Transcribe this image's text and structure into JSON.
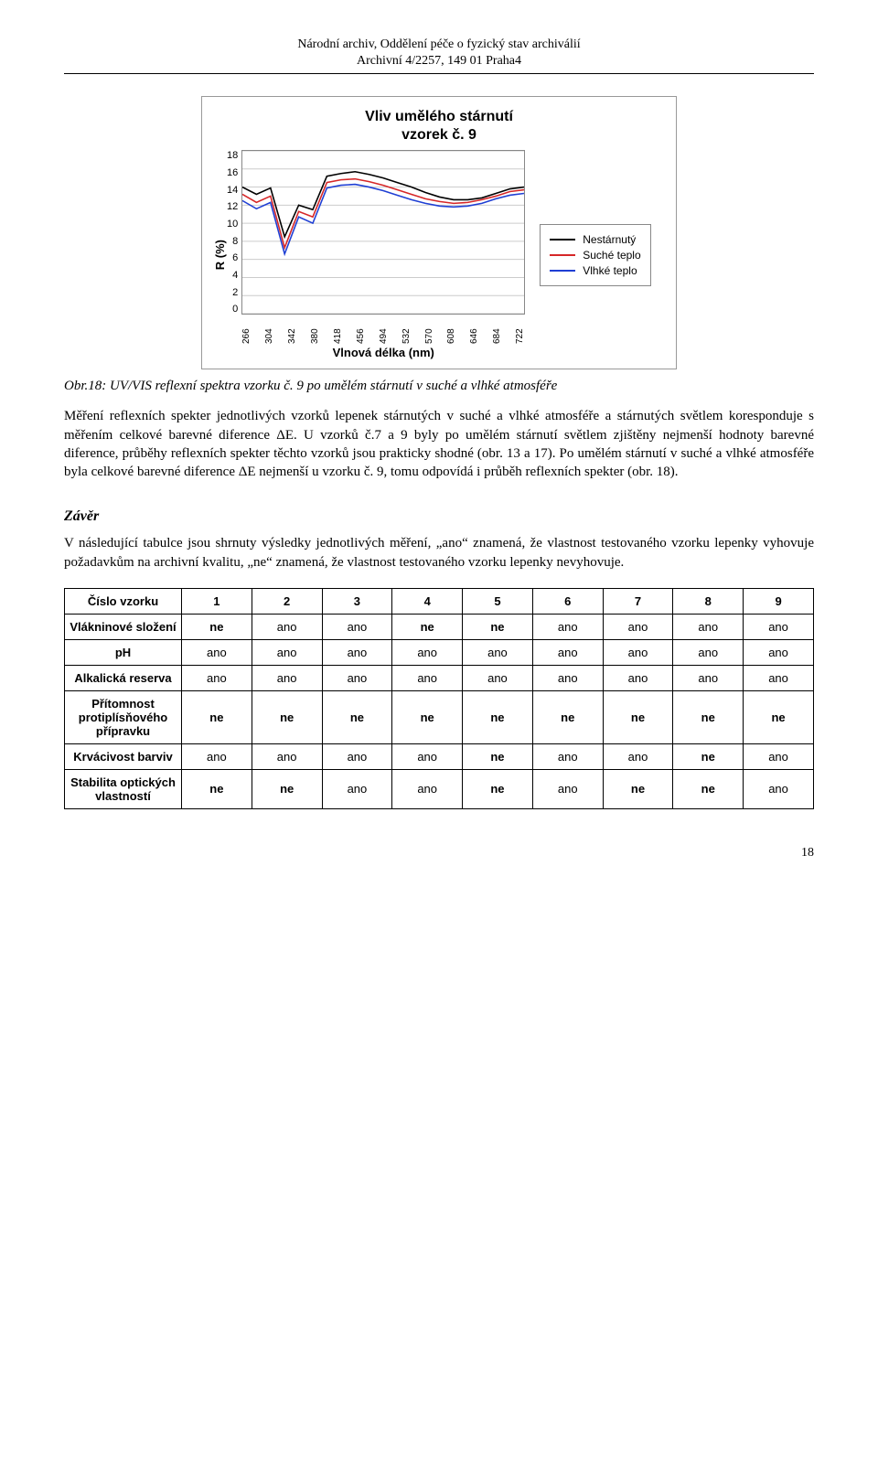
{
  "header": {
    "line1": "Národní archiv, Oddělení péče o fyzický stav archiválií",
    "line2": "Archivní 4/2257, 149 01 Praha4"
  },
  "chart": {
    "title_line1": "Vliv umělého stárnutí",
    "title_line2": "vzorek č. 9",
    "y_label": "R (%)",
    "x_label": "Vlnová délka (nm)",
    "y_ticks": [
      "18",
      "16",
      "14",
      "12",
      "10",
      "8",
      "6",
      "4",
      "2",
      "0"
    ],
    "x_ticks": [
      "266",
      "304",
      "342",
      "380",
      "418",
      "456",
      "494",
      "532",
      "570",
      "608",
      "646",
      "684",
      "722"
    ],
    "ylim": [
      0,
      18
    ],
    "series": [
      {
        "name": "Nestárnutý",
        "color": "#000000",
        "y": [
          14.0,
          13.2,
          13.9,
          8.5,
          12.0,
          11.5,
          15.2,
          15.5,
          15.7,
          15.4,
          15.0,
          14.5,
          14.0,
          13.4,
          12.9,
          12.6,
          12.6,
          12.8,
          13.3,
          13.8,
          14.0
        ]
      },
      {
        "name": "Suché teplo",
        "color": "#d62728",
        "y": [
          13.2,
          12.3,
          13.0,
          7.3,
          11.3,
          10.7,
          14.5,
          14.8,
          14.9,
          14.6,
          14.2,
          13.7,
          13.2,
          12.7,
          12.4,
          12.2,
          12.3,
          12.6,
          13.0,
          13.5,
          13.7
        ]
      },
      {
        "name": "Vlhké teplo",
        "color": "#1f3fd4",
        "y": [
          12.5,
          11.6,
          12.3,
          6.6,
          10.7,
          10.0,
          13.9,
          14.2,
          14.3,
          14.0,
          13.6,
          13.1,
          12.6,
          12.2,
          11.9,
          11.8,
          11.9,
          12.2,
          12.7,
          13.1,
          13.3
        ]
      }
    ],
    "grid_color": "#cccccc",
    "bg": "#ffffff"
  },
  "caption": "Obr.18: UV/VIS reflexní spektra vzorku č. 9 po umělém stárnutí v suché a vlhké atmosféře",
  "para1": "Měření reflexních spekter jednotlivých vzorků lepenek stárnutých v suché a vlhké atmosféře a stárnutých světlem koresponduje s měřením celkové barevné diference ΔE. U vzorků č.7 a 9 byly po umělém stárnutí světlem zjištěny nejmenší hodnoty barevné diference, průběhy reflexních spekter těchto vzorků jsou prakticky shodné (obr. 13 a 17). Po umělém stárnutí v suché a vlhké atmosféře byla celkové barevné diference ΔE nejmenší u vzorku č. 9, tomu odpovídá i průběh reflexních spekter (obr. 18).",
  "section": "Závěr",
  "para2": "V následující tabulce jsou shrnuty výsledky jednotlivých měření, „ano“ znamená, že vlastnost testovaného vzorku lepenky vyhovuje požadavkům na archivní kvalitu, „ne“ znamená, že vlastnost testovaného vzorku lepenky nevyhovuje.",
  "table": {
    "col_header": "Číslo vzorku",
    "cols": [
      "1",
      "2",
      "3",
      "4",
      "5",
      "6",
      "7",
      "8",
      "9"
    ],
    "rows": [
      {
        "label": "Vlákninové složení",
        "cells": [
          "ne",
          "ano",
          "ano",
          "ne",
          "ne",
          "ano",
          "ano",
          "ano",
          "ano"
        ]
      },
      {
        "label": "pH",
        "cells": [
          "ano",
          "ano",
          "ano",
          "ano",
          "ano",
          "ano",
          "ano",
          "ano",
          "ano"
        ]
      },
      {
        "label": "Alkalická reserva",
        "cells": [
          "ano",
          "ano",
          "ano",
          "ano",
          "ano",
          "ano",
          "ano",
          "ano",
          "ano"
        ]
      },
      {
        "label": "Přítomnost protiplísňového přípravku",
        "cells": [
          "ne",
          "ne",
          "ne",
          "ne",
          "ne",
          "ne",
          "ne",
          "ne",
          "ne"
        ]
      },
      {
        "label": "Krvácivost barviv",
        "cells": [
          "ano",
          "ano",
          "ano",
          "ano",
          "ne",
          "ano",
          "ano",
          "ne",
          "ano"
        ]
      },
      {
        "label": "Stabilita optických vlastností",
        "cells": [
          "ne",
          "ne",
          "ano",
          "ano",
          "ne",
          "ano",
          "ne",
          "ne",
          "ano"
        ]
      }
    ]
  },
  "page_num": "18"
}
